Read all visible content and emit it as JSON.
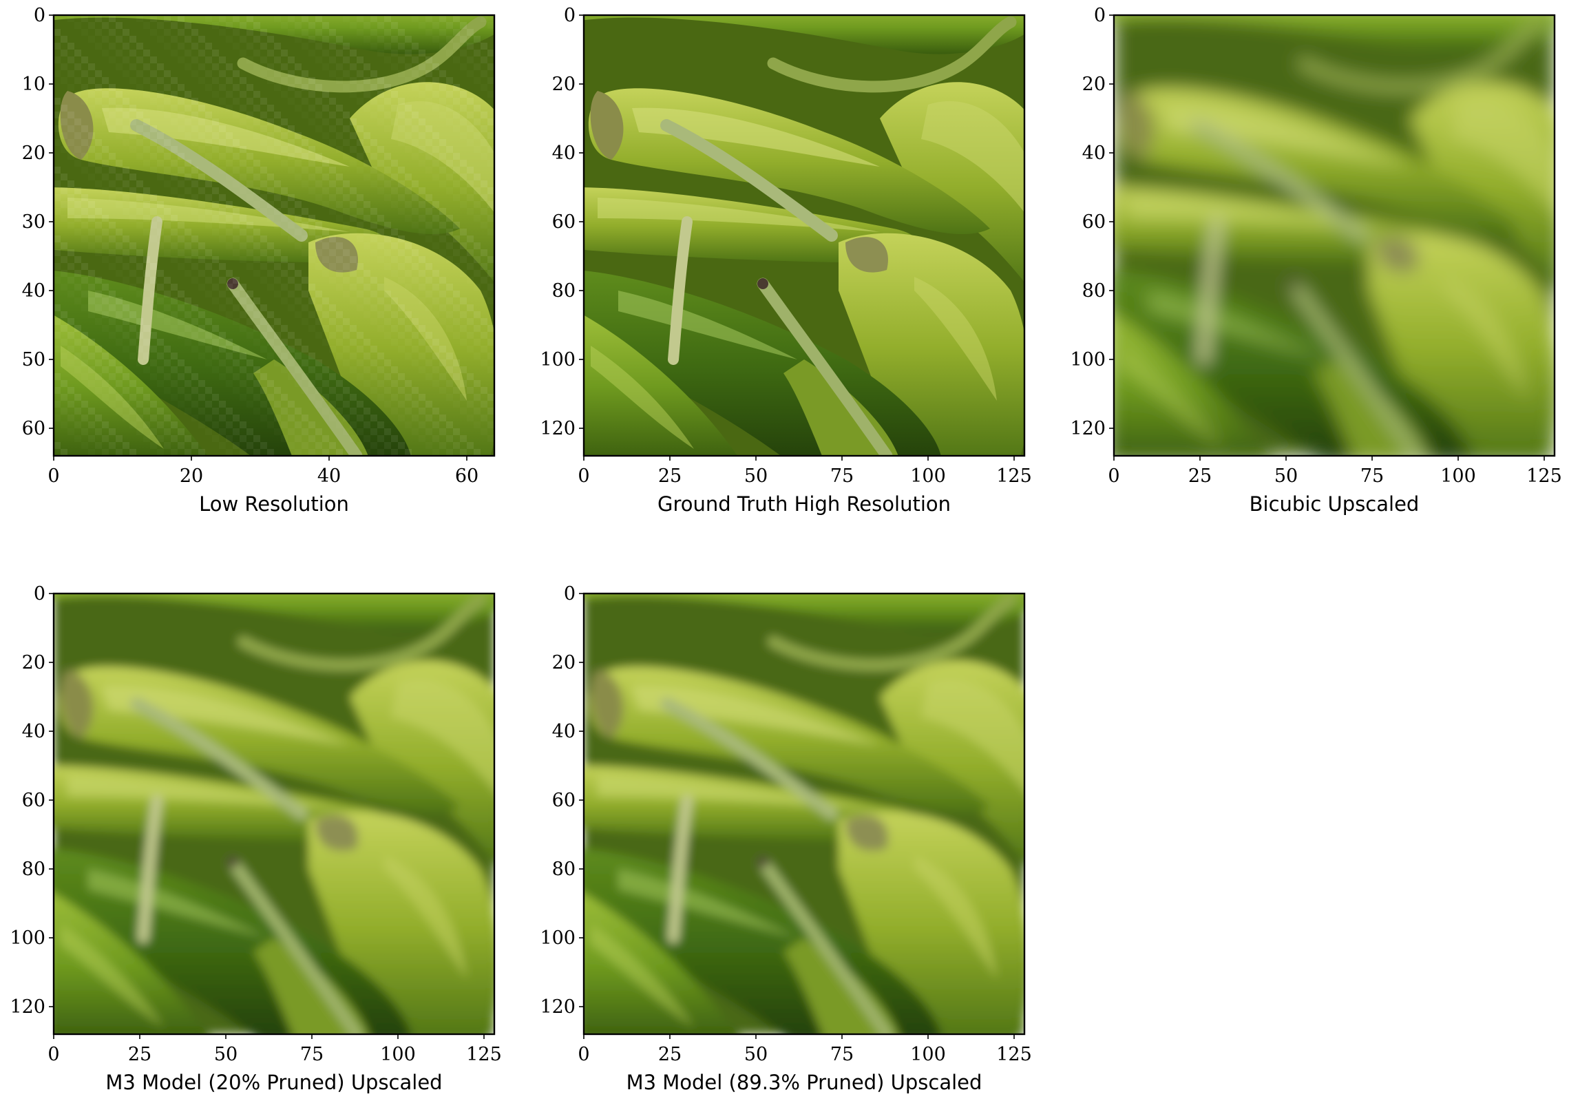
{
  "figure": {
    "colors": {
      "pepper_dark": "#3f6310",
      "pepper_mid": "#7f9f24",
      "pepper_light": "#b6c84c",
      "stem": "#a8b87a",
      "background": "#ffffff",
      "frame": "#000000"
    },
    "panels": [
      {
        "id": "low",
        "caption": "Low Resolution",
        "image_size": 64,
        "blocky": true,
        "xticks": [
          0,
          20,
          40,
          60
        ],
        "yticks": [
          0,
          10,
          20,
          30,
          40,
          50,
          60
        ]
      },
      {
        "id": "gt",
        "caption": "Ground Truth High Resolution",
        "image_size": 128,
        "blocky": false,
        "xticks": [
          0,
          25,
          50,
          75,
          100,
          125
        ],
        "yticks": [
          0,
          20,
          40,
          60,
          80,
          100,
          120
        ]
      },
      {
        "id": "bicubic",
        "caption": "Bicubic Upscaled",
        "image_size": 128,
        "blocky": false,
        "xticks": [
          0,
          25,
          50,
          75,
          100,
          125
        ],
        "yticks": [
          0,
          20,
          40,
          60,
          80,
          100,
          120
        ]
      },
      {
        "id": "m3_20",
        "caption": "M3 Model (20% Pruned) Upscaled",
        "image_size": 128,
        "blocky": false,
        "xticks": [
          0,
          25,
          50,
          75,
          100,
          125
        ],
        "yticks": [
          0,
          20,
          40,
          60,
          80,
          100,
          120
        ]
      },
      {
        "id": "m3_893",
        "caption": "M3 Model (89.3% Pruned) Upscaled",
        "image_size": 128,
        "blocky": false,
        "xticks": [
          0,
          25,
          50,
          75,
          100,
          125
        ],
        "yticks": [
          0,
          20,
          40,
          60,
          80,
          100,
          120
        ]
      }
    ]
  }
}
